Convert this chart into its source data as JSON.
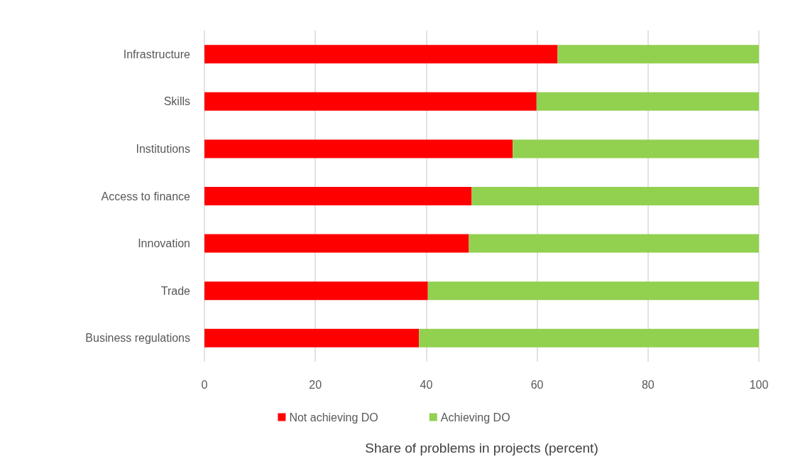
{
  "chart_data": {
    "type": "bar",
    "orientation": "horizontal",
    "stacked": true,
    "xlabel": "Share of problems in projects (percent)",
    "categories": [
      "Infrastructure",
      "Skills",
      "Institutions",
      "Access to finance",
      "Innovation",
      "Trade",
      "Business regulations"
    ],
    "series": [
      {
        "name": "Not achieving DO",
        "color": "#ff0000",
        "values": [
          63.7,
          59.9,
          55.6,
          48.2,
          47.7,
          40.3,
          38.7
        ]
      },
      {
        "name": "Achieving DO",
        "color": "#92d050",
        "values": [
          36.3,
          40.1,
          44.4,
          51.8,
          52.3,
          59.7,
          61.3
        ]
      }
    ],
    "xlim": [
      0,
      100
    ],
    "xticks": [
      0,
      20,
      40,
      60,
      80,
      100
    ],
    "grid": "x",
    "legend": "bottom"
  }
}
